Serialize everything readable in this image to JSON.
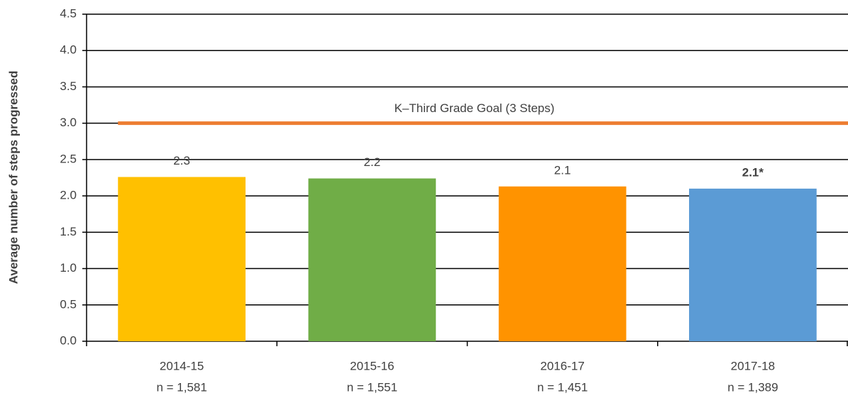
{
  "chart_data": {
    "type": "bar",
    "y_label": "Average number of steps progressed",
    "categories": [
      "2014-15",
      "2015-16",
      "2016-17",
      "2017-18"
    ],
    "category_notes": [
      "n = 1,581",
      "n = 1,551",
      "n = 1,451",
      "n = 1,389"
    ],
    "values": [
      2.26,
      2.24,
      2.13,
      2.1
    ],
    "value_labels": [
      "2.3",
      "2.2",
      "2.1",
      "2.1*"
    ],
    "value_label_bold": [
      false,
      false,
      false,
      true
    ],
    "colors": [
      "#ffc000",
      "#70ad47",
      "#ff9300",
      "#5b9bd5"
    ],
    "reference_line": {
      "value": 3,
      "label": "K–Third Grade Goal (3 Steps)",
      "color": "#ed7d31"
    },
    "ylim": [
      0,
      4.5
    ],
    "yticks": [
      {
        "value": 0,
        "label": "0.0"
      },
      {
        "value": 0.5,
        "label": "0.5"
      },
      {
        "value": 1,
        "label": "1.0"
      },
      {
        "value": 1.5,
        "label": "1.5"
      },
      {
        "value": 2,
        "label": "2.0"
      },
      {
        "value": 2.5,
        "label": "2.5"
      },
      {
        "value": 3,
        "label": "3.0"
      },
      {
        "value": 3.5,
        "label": "3.5"
      },
      {
        "value": 4,
        "label": "4.0"
      },
      {
        "value": 4.5,
        "label": "4.5"
      }
    ],
    "grid": true
  }
}
